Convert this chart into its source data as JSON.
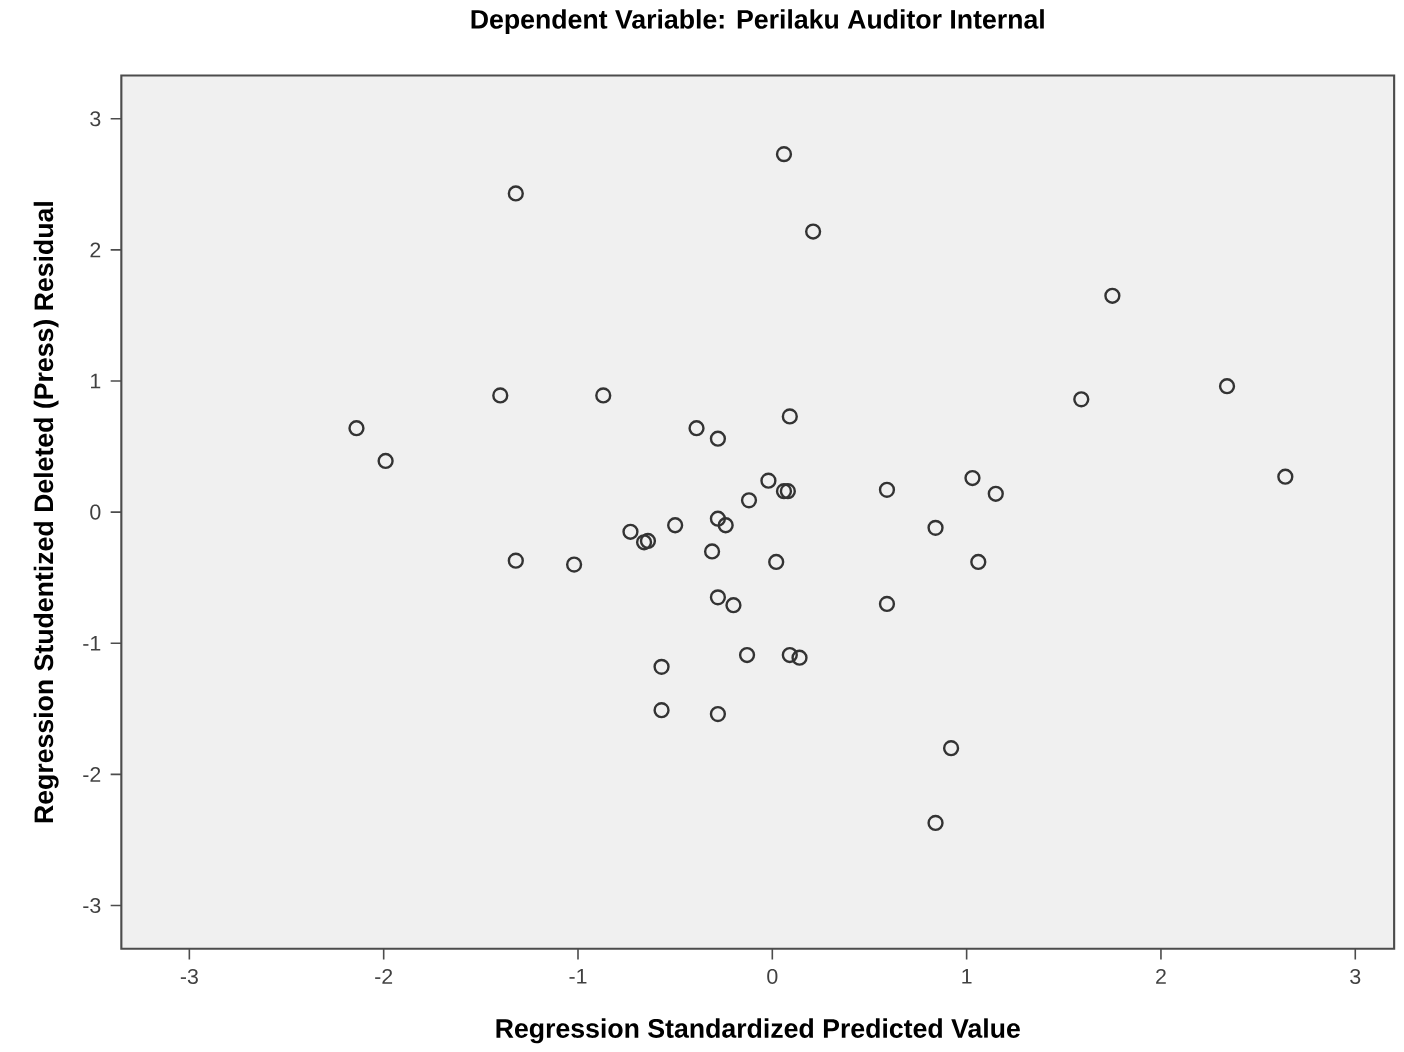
{
  "chart_data": {
    "type": "scatter",
    "title": "Dependent Variable: Perilaku Auditor Internal",
    "xlabel": "Regression Standardized Predicted Value",
    "ylabel": "Regression Studentized Deleted (Press) Residual",
    "xlim": [
      -3.35,
      3.2
    ],
    "ylim": [
      -3.33,
      3.33
    ],
    "xticks": [
      -3,
      -2,
      -1,
      0,
      1,
      2,
      3
    ],
    "yticks": [
      -3,
      -2,
      -1,
      0,
      1,
      2,
      3
    ],
    "grid": false,
    "marker": "circle",
    "series": [
      {
        "color": "#333333",
        "x": [
          -2.14,
          -1.99,
          -1.32,
          -1.4,
          -0.87,
          -0.39,
          -0.28,
          0.06,
          0.09,
          -0.02,
          0.06,
          0.08,
          -0.12,
          0.21,
          1.75,
          1.59,
          2.34,
          2.64,
          0.59,
          1.03,
          1.15,
          -0.73,
          -0.64,
          -0.66,
          -0.5,
          -0.28,
          -0.24,
          -0.31,
          0.02,
          -1.32,
          -1.02,
          -0.28,
          -0.2,
          -0.13,
          0.09,
          -0.57,
          -0.57,
          -0.28,
          0.14,
          0.84,
          1.06,
          0.59,
          0.92,
          0.84
        ],
        "values": [
          0.64,
          0.39,
          2.43,
          0.89,
          0.89,
          0.64,
          0.56,
          2.73,
          0.73,
          0.24,
          0.16,
          0.16,
          0.09,
          2.14,
          1.65,
          0.86,
          0.96,
          0.27,
          0.17,
          0.26,
          0.14,
          -0.15,
          -0.22,
          -0.23,
          -0.1,
          -0.05,
          -0.1,
          -0.3,
          -0.38,
          -0.37,
          -0.4,
          -0.65,
          -0.71,
          -1.09,
          -1.09,
          -1.18,
          -1.51,
          -1.54,
          -1.11,
          -0.12,
          -0.38,
          -0.7,
          -1.8,
          -2.37
        ]
      }
    ]
  }
}
